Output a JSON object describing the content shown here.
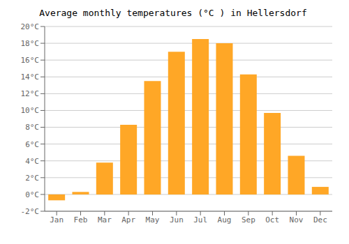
{
  "chart_data": {
    "type": "bar",
    "title": "Average monthly temperatures (°C ) in Hellersdorf",
    "categories": [
      "Jan",
      "Feb",
      "Mar",
      "Apr",
      "May",
      "Jun",
      "Jul",
      "Aug",
      "Sep",
      "Oct",
      "Nov",
      "Dec"
    ],
    "values": [
      -0.7,
      0.3,
      3.8,
      8.3,
      13.5,
      17.0,
      18.5,
      18.0,
      14.3,
      9.7,
      4.6,
      0.9
    ],
    "color": "#FFA726",
    "ylim": [
      -2,
      20
    ],
    "yticks": [
      {
        "value": -2,
        "label": "-2°C"
      },
      {
        "value": 0,
        "label": "0°C"
      },
      {
        "value": 2,
        "label": "2°C"
      },
      {
        "value": 4,
        "label": "4°C"
      },
      {
        "value": 6,
        "label": "6°C"
      },
      {
        "value": 8,
        "label": "8°C"
      },
      {
        "value": 10,
        "label": "10°C"
      },
      {
        "value": 12,
        "label": "12°C"
      },
      {
        "value": 14,
        "label": "14°C"
      },
      {
        "value": 16,
        "label": "16°C"
      },
      {
        "value": 18,
        "label": "18°C"
      },
      {
        "value": 20,
        "label": "20°C"
      }
    ],
    "grid": true
  }
}
